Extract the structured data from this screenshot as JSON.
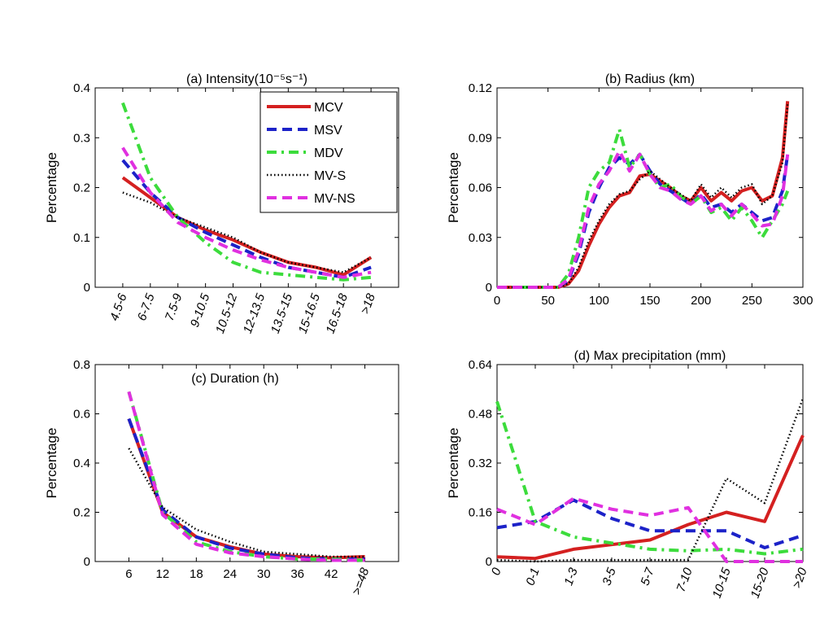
{
  "series_styles": [
    {
      "name": "MCV",
      "color": "#d42020",
      "dash": "none",
      "width": 4
    },
    {
      "name": "MSV",
      "color": "#1c22c8",
      "dash": "12,7",
      "width": 4
    },
    {
      "name": "MDV",
      "color": "#3cdc3c",
      "dash": "12,6,3,6",
      "width": 4
    },
    {
      "name": "MV-S",
      "color": "#000000",
      "dash": "1.5,3",
      "width": 2.5
    },
    {
      "name": "MV-NS",
      "color": "#e030e0",
      "dash": "12,7",
      "width": 4
    }
  ],
  "chart_data": [
    {
      "id": "a",
      "type": "line",
      "title": "(a) Intensity(10⁻⁵s⁻¹)",
      "ylabel": "Percentage",
      "xlabel": "",
      "ylim": [
        0,
        0.4
      ],
      "yticks": [
        "0",
        "0.1",
        "0.2",
        "0.3",
        "0.4"
      ],
      "categories": [
        "4.5-6",
        "6-7.5",
        "7.5-9",
        "9-10.5",
        "10.5-12",
        "12-13.5",
        "13.5-15",
        "15-16.5",
        "16.5-18",
        ">18"
      ],
      "legend": "top-right",
      "series": [
        {
          "name": "MCV",
          "values": [
            0.22,
            0.18,
            0.14,
            0.115,
            0.095,
            0.07,
            0.05,
            0.04,
            0.025,
            0.06
          ]
        },
        {
          "name": "MSV",
          "values": [
            0.255,
            0.19,
            0.14,
            0.11,
            0.085,
            0.06,
            0.04,
            0.03,
            0.02,
            0.04
          ]
        },
        {
          "name": "MDV",
          "values": [
            0.37,
            0.22,
            0.14,
            0.09,
            0.05,
            0.03,
            0.025,
            0.02,
            0.015,
            0.02
          ]
        },
        {
          "name": "MV-S",
          "values": [
            0.19,
            0.17,
            0.14,
            0.12,
            0.1,
            0.07,
            0.05,
            0.04,
            0.03,
            0.06
          ]
        },
        {
          "name": "MV-NS",
          "values": [
            0.28,
            0.19,
            0.13,
            0.1,
            0.075,
            0.055,
            0.04,
            0.03,
            0.02,
            0.03
          ]
        }
      ]
    },
    {
      "id": "b",
      "type": "line",
      "title": "(b) Radius (km)",
      "ylabel": "Percentage",
      "xlabel": "",
      "xlim": [
        0,
        300
      ],
      "xticks": [
        "0",
        "50",
        "100",
        "150",
        "200",
        "250",
        "300"
      ],
      "ylim": [
        0,
        0.12
      ],
      "yticks": [
        "0",
        "0.03",
        "0.06",
        "0.09",
        "0.12"
      ],
      "x": [
        0,
        10,
        20,
        30,
        40,
        50,
        60,
        70,
        80,
        90,
        100,
        110,
        120,
        130,
        140,
        150,
        160,
        170,
        180,
        190,
        200,
        210,
        220,
        230,
        240,
        250,
        260,
        270,
        280,
        285
      ],
      "series": [
        {
          "name": "MCV",
          "values": [
            0,
            0,
            0,
            0,
            0,
            0,
            0,
            0.002,
            0.01,
            0.025,
            0.038,
            0.048,
            0.055,
            0.057,
            0.067,
            0.068,
            0.064,
            0.06,
            0.055,
            0.052,
            0.06,
            0.052,
            0.057,
            0.052,
            0.058,
            0.06,
            0.052,
            0.055,
            0.078,
            0.112
          ]
        },
        {
          "name": "MSV",
          "values": [
            0,
            0,
            0,
            0,
            0,
            0,
            0,
            0.004,
            0.02,
            0.045,
            0.06,
            0.072,
            0.078,
            0.074,
            0.08,
            0.07,
            0.062,
            0.058,
            0.054,
            0.05,
            0.056,
            0.048,
            0.05,
            0.045,
            0.05,
            0.045,
            0.04,
            0.042,
            0.058,
            0.08
          ]
        },
        {
          "name": "MDV",
          "values": [
            0,
            0,
            0,
            0,
            0,
            0,
            0,
            0.008,
            0.03,
            0.06,
            0.07,
            0.075,
            0.095,
            0.072,
            0.08,
            0.068,
            0.06,
            0.062,
            0.055,
            0.05,
            0.055,
            0.045,
            0.048,
            0.04,
            0.048,
            0.04,
            0.03,
            0.04,
            0.05,
            0.058
          ]
        },
        {
          "name": "MV-S",
          "values": [
            0,
            0,
            0,
            0,
            0,
            0,
            0,
            0.002,
            0.012,
            0.028,
            0.04,
            0.05,
            0.056,
            0.058,
            0.065,
            0.07,
            0.065,
            0.06,
            0.056,
            0.052,
            0.062,
            0.054,
            0.06,
            0.054,
            0.06,
            0.062,
            0.05,
            0.055,
            0.075,
            0.11
          ]
        },
        {
          "name": "MV-NS",
          "values": [
            0,
            0,
            0,
            0,
            0,
            0,
            0,
            0.005,
            0.022,
            0.048,
            0.062,
            0.07,
            0.082,
            0.07,
            0.08,
            0.068,
            0.06,
            0.058,
            0.053,
            0.05,
            0.055,
            0.046,
            0.05,
            0.043,
            0.05,
            0.044,
            0.037,
            0.038,
            0.055,
            0.08
          ]
        }
      ]
    },
    {
      "id": "c",
      "type": "line",
      "title": "(c) Duration (h)",
      "ylabel": "Percentage",
      "xlabel": "",
      "ylim": [
        0,
        0.8
      ],
      "yticks": [
        "0",
        "0.2",
        "0.4",
        "0.6",
        "0.8"
      ],
      "categories": [
        "6",
        "12",
        "18",
        "24",
        "30",
        "36",
        "42",
        ">=48"
      ],
      "series": [
        {
          "name": "MCV",
          "values": [
            0.58,
            0.2,
            0.1,
            0.06,
            0.03,
            0.02,
            0.015,
            0.02
          ]
        },
        {
          "name": "MSV",
          "values": [
            0.58,
            0.21,
            0.1,
            0.055,
            0.03,
            0.015,
            0.01,
            0.01
          ]
        },
        {
          "name": "MDV",
          "values": [
            0.69,
            0.2,
            0.08,
            0.04,
            0.02,
            0.01,
            0.01,
            0.005
          ]
        },
        {
          "name": "MV-S",
          "values": [
            0.46,
            0.22,
            0.13,
            0.08,
            0.04,
            0.03,
            0.02,
            0.02
          ]
        },
        {
          "name": "MV-NS",
          "values": [
            0.69,
            0.19,
            0.07,
            0.035,
            0.02,
            0.01,
            0.005,
            0.005
          ]
        }
      ]
    },
    {
      "id": "d",
      "type": "line",
      "title": "(d) Max precipitation (mm)",
      "ylabel": "Percentage",
      "xlabel": "",
      "ylim": [
        0,
        0.64
      ],
      "yticks": [
        "0",
        "0.16",
        "0.32",
        "0.48",
        "0.64"
      ],
      "categories": [
        "0",
        "0-1",
        "1-3",
        "3-5",
        "5-7",
        "7-10",
        "10-15",
        "15-20",
        ">20"
      ],
      "series": [
        {
          "name": "MCV",
          "values": [
            0.015,
            0.01,
            0.04,
            0.055,
            0.07,
            0.12,
            0.16,
            0.13,
            0.41
          ]
        },
        {
          "name": "MSV",
          "values": [
            0.11,
            0.13,
            0.2,
            0.14,
            0.1,
            0.1,
            0.1,
            0.045,
            0.085
          ]
        },
        {
          "name": "MDV",
          "values": [
            0.52,
            0.13,
            0.08,
            0.06,
            0.04,
            0.035,
            0.04,
            0.025,
            0.04
          ]
        },
        {
          "name": "MV-S",
          "values": [
            0.005,
            0,
            0.005,
            0.005,
            0.005,
            0.005,
            0.27,
            0.19,
            0.53
          ]
        },
        {
          "name": "MV-NS",
          "values": [
            0.17,
            0.12,
            0.205,
            0.17,
            0.15,
            0.175,
            0,
            0,
            0
          ]
        }
      ]
    }
  ]
}
